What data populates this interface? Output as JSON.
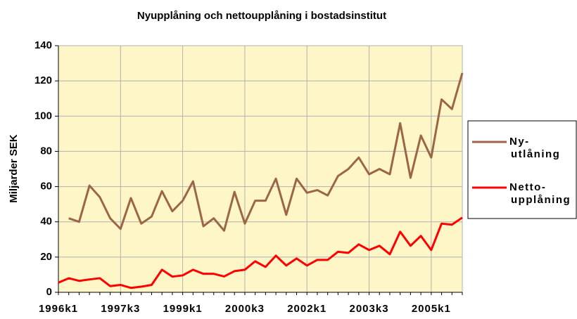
{
  "chart_data": {
    "type": "line",
    "title": "Nyupplåning och nettoupplåning i bostadsinstitut",
    "y_label": "Miljarder SEK",
    "categories": [
      "1996k1",
      null,
      null,
      null,
      null,
      null,
      "1997k3",
      null,
      null,
      null,
      null,
      null,
      "1999k1",
      null,
      null,
      null,
      null,
      null,
      "2000k3",
      null,
      null,
      null,
      null,
      null,
      "2002k1",
      null,
      null,
      null,
      null,
      null,
      "2003k3",
      null,
      null,
      null,
      null,
      null,
      "2005k1",
      null,
      null,
      null
    ],
    "series": [
      {
        "name": "Ny-utlåning",
        "color": "#9b6645",
        "values": [
          null,
          42,
          40,
          60.6,
          54,
          42,
          36,
          53.5,
          39,
          43,
          57.4,
          46,
          52,
          63,
          37.5,
          42,
          35,
          57,
          39,
          52,
          52,
          64.5,
          44,
          64.5,
          56.5,
          58,
          55,
          66,
          70,
          76.5,
          67,
          70,
          67,
          96,
          65,
          89,
          76.5,
          109.5,
          104,
          124.5
        ]
      },
      {
        "name": "Netto-upplåning",
        "color": "#ff0000",
        "values": [
          5.5,
          8,
          6.5,
          7.3,
          8,
          3.5,
          4.2,
          2.5,
          3.2,
          4.2,
          12.8,
          8.9,
          9.6,
          12.8,
          10.5,
          10.5,
          9,
          12,
          12.8,
          17.6,
          14.4,
          20.8,
          15.2,
          19.2,
          15.2,
          18.4,
          18.4,
          23,
          22.4,
          27.2,
          24,
          26.4,
          21.6,
          34.4,
          26.4,
          32,
          24,
          39,
          38.4,
          42.4
        ]
      }
    ],
    "ylim": [
      0,
      140
    ],
    "yticks": [
      0,
      20,
      40,
      60,
      80,
      100,
      120,
      140
    ],
    "grid": true,
    "legend": "right",
    "background": "#fff6c8"
  }
}
